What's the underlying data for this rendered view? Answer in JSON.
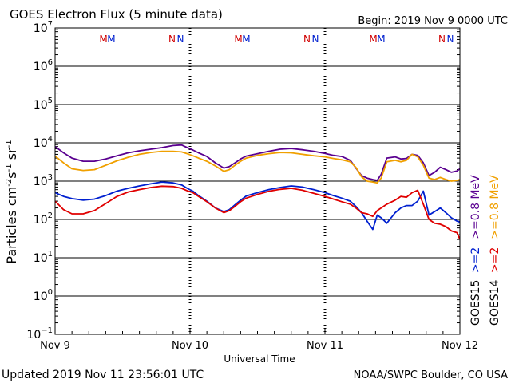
{
  "header": {
    "title": "GOES Electron Flux (5 minute data)",
    "begin": "Begin: 2019 Nov 9 0000 UTC"
  },
  "footer": {
    "updated": "Updated 2019 Nov 11 23:56:01 UTC",
    "source": "NOAA/SWPC Boulder, CO USA"
  },
  "chart_data": {
    "type": "line",
    "title": "GOES Electron Flux (5 minute data)",
    "xlabel": "Universal Time",
    "ylabel": "Particles cm⁻²s⁻¹sr⁻¹",
    "y_scale": "log",
    "ylim": [
      0.1,
      10000000
    ],
    "xlim": [
      0,
      72
    ],
    "x_unit": "hours since 2019 Nov 9 0000 UTC",
    "x_ticks": [
      {
        "x": 0,
        "label": "Nov 9"
      },
      {
        "x": 24,
        "label": "Nov 10"
      },
      {
        "x": 48,
        "label": "Nov 11"
      },
      {
        "x": 72,
        "label": "Nov 12"
      }
    ],
    "y_ticks": [
      {
        "exp": 7,
        "label": "10",
        "sup": "7"
      },
      {
        "exp": 6,
        "label": "10",
        "sup": "6"
      },
      {
        "exp": 5,
        "label": "10",
        "sup": "5"
      },
      {
        "exp": 4,
        "label": "10",
        "sup": "4"
      },
      {
        "exp": 3,
        "label": "10",
        "sup": "3"
      },
      {
        "exp": 2,
        "label": "10",
        "sup": "2"
      },
      {
        "exp": 1,
        "label": "10",
        "sup": "1"
      },
      {
        "exp": 0,
        "label": "10",
        "sup": "0"
      },
      {
        "exp": -1,
        "label": "10",
        "sup": "−1"
      }
    ],
    "threshold": 1000,
    "markers": [
      {
        "x": 8.6,
        "label": "M",
        "color": "#d00000"
      },
      {
        "x": 10.0,
        "label": "M",
        "color": "#0020d0"
      },
      {
        "x": 20.8,
        "label": "N",
        "color": "#d00000"
      },
      {
        "x": 22.3,
        "label": "N",
        "color": "#0020d0"
      },
      {
        "x": 32.6,
        "label": "M",
        "color": "#d00000"
      },
      {
        "x": 34.0,
        "label": "M",
        "color": "#0020d0"
      },
      {
        "x": 44.8,
        "label": "N",
        "color": "#d00000"
      },
      {
        "x": 46.3,
        "label": "N",
        "color": "#0020d0"
      },
      {
        "x": 56.6,
        "label": "M",
        "color": "#d00000"
      },
      {
        "x": 58.0,
        "label": "M",
        "color": "#0020d0"
      },
      {
        "x": 68.8,
        "label": "N",
        "color": "#d00000"
      },
      {
        "x": 70.3,
        "label": "N",
        "color": "#0020d0"
      }
    ],
    "legend": [
      {
        "label": "GOES15",
        "items": [
          {
            "text": ">=2",
            "color": "#0020d0"
          },
          {
            "text": ">=0.8 MeV",
            "color": "#5a0090"
          }
        ]
      },
      {
        "label": "GOES14",
        "items": [
          {
            "text": ">=2",
            "color": "#e00000"
          },
          {
            "text": ">=0.8 MeV",
            "color": "#f0a000"
          }
        ]
      }
    ],
    "series": [
      {
        "name": "GOES15 >=0.8 MeV",
        "color": "#5a0090",
        "x": [
          0,
          1.5,
          3,
          5,
          7,
          9,
          11,
          13,
          15,
          17,
          19,
          21,
          22.5,
          23.5,
          24.5,
          25.5,
          27,
          28.5,
          30,
          31,
          32,
          33,
          34,
          36,
          38,
          40,
          42,
          44,
          46,
          48,
          49.5,
          51,
          52.5,
          53.5,
          54.5,
          55.5,
          56.5,
          57.3,
          58,
          59,
          60.5,
          61.5,
          62.5,
          63.5,
          64.5,
          65.5,
          66.5,
          67.5,
          68.5,
          69.5,
          70.5,
          71.5,
          72
        ],
        "y": [
          8000,
          5500,
          4000,
          3300,
          3300,
          3800,
          4600,
          5500,
          6200,
          6800,
          7500,
          8500,
          8800,
          7500,
          6500,
          5500,
          4400,
          3000,
          2200,
          2400,
          3000,
          3800,
          4500,
          5200,
          6000,
          6800,
          7100,
          6600,
          6000,
          5300,
          4700,
          4400,
          3500,
          2200,
          1400,
          1200,
          1100,
          1050,
          1500,
          4000,
          4300,
          3800,
          3900,
          5000,
          4700,
          3000,
          1400,
          1700,
          2300,
          2000,
          1700,
          1850,
          2100
        ]
      },
      {
        "name": "GOES14 >=0.8 MeV",
        "color": "#f0a000",
        "x": [
          0,
          1.5,
          3,
          5,
          7,
          9,
          11,
          13,
          15,
          17,
          19,
          21,
          22.5,
          23.5,
          24.5,
          25.5,
          27,
          28.5,
          30,
          31,
          32,
          33,
          34,
          36,
          38,
          40,
          42,
          44,
          46,
          48,
          49.5,
          51,
          52.5,
          53.5,
          54.5,
          55.5,
          56.5,
          57.3,
          58,
          59,
          60.5,
          61.5,
          62.5,
          63.5,
          64.5,
          65.5,
          66.5,
          67.5,
          68.5,
          69.5,
          70.5,
          71.5,
          72
        ],
        "y": [
          4500,
          3000,
          2100,
          1900,
          2000,
          2600,
          3400,
          4200,
          5000,
          5600,
          6000,
          6000,
          5800,
          5200,
          4600,
          4000,
          3300,
          2500,
          1800,
          2000,
          2600,
          3300,
          4000,
          4700,
          5200,
          5600,
          5500,
          5000,
          4600,
          4300,
          3900,
          3600,
          3200,
          2300,
          1300,
          1000,
          950,
          900,
          1200,
          3200,
          3500,
          3200,
          3500,
          5000,
          4300,
          2600,
          1200,
          1100,
          1250,
          1100,
          1000,
          1050,
          1100
        ]
      },
      {
        "name": "GOES15 >=2",
        "color": "#0020d0",
        "x": [
          0,
          1.5,
          3,
          5,
          7,
          9,
          11,
          13,
          15,
          17,
          19,
          21,
          22.5,
          23.5,
          24.5,
          25.5,
          27,
          28.5,
          30,
          31,
          32,
          33,
          34,
          36,
          38,
          40,
          42,
          44,
          46,
          48,
          49.5,
          51,
          52.5,
          53.5,
          54.5,
          55.5,
          56.5,
          57.3,
          58,
          59,
          60.5,
          61.5,
          62.5,
          63.5,
          64.5,
          65.5,
          66.5,
          67.5,
          68.5,
          69.5,
          70.5,
          71.5,
          72
        ],
        "y": [
          500,
          400,
          350,
          320,
          340,
          420,
          550,
          650,
          750,
          850,
          950,
          900,
          800,
          650,
          550,
          420,
          300,
          200,
          160,
          180,
          240,
          320,
          410,
          500,
          600,
          680,
          750,
          700,
          600,
          500,
          420,
          360,
          300,
          220,
          150,
          90,
          55,
          130,
          110,
          80,
          150,
          200,
          230,
          230,
          300,
          550,
          130,
          160,
          200,
          150,
          110,
          90,
          85
        ]
      },
      {
        "name": "GOES14 >=2",
        "color": "#e00000",
        "x": [
          0,
          1.5,
          3,
          5,
          7,
          9,
          11,
          13,
          15,
          17,
          19,
          21,
          22.5,
          23.5,
          24.5,
          25.5,
          27,
          28.5,
          30,
          31,
          32,
          33,
          34,
          36,
          38,
          40,
          42,
          44,
          46,
          48,
          49.5,
          51,
          52.5,
          53.5,
          54.5,
          55.5,
          56.5,
          57.3,
          58,
          59,
          60.5,
          61.5,
          62.5,
          63.5,
          64.5,
          65.5,
          66.5,
          67.5,
          68.5,
          69.5,
          70.5,
          71.5,
          72
        ],
        "y": [
          300,
          180,
          140,
          140,
          170,
          260,
          400,
          520,
          600,
          680,
          740,
          720,
          650,
          560,
          500,
          400,
          290,
          200,
          150,
          170,
          220,
          290,
          360,
          450,
          540,
          610,
          650,
          580,
          480,
          400,
          340,
          290,
          250,
          200,
          150,
          140,
          120,
          170,
          200,
          250,
          320,
          400,
          380,
          500,
          580,
          250,
          100,
          80,
          75,
          65,
          50,
          45,
          30
        ]
      }
    ]
  }
}
